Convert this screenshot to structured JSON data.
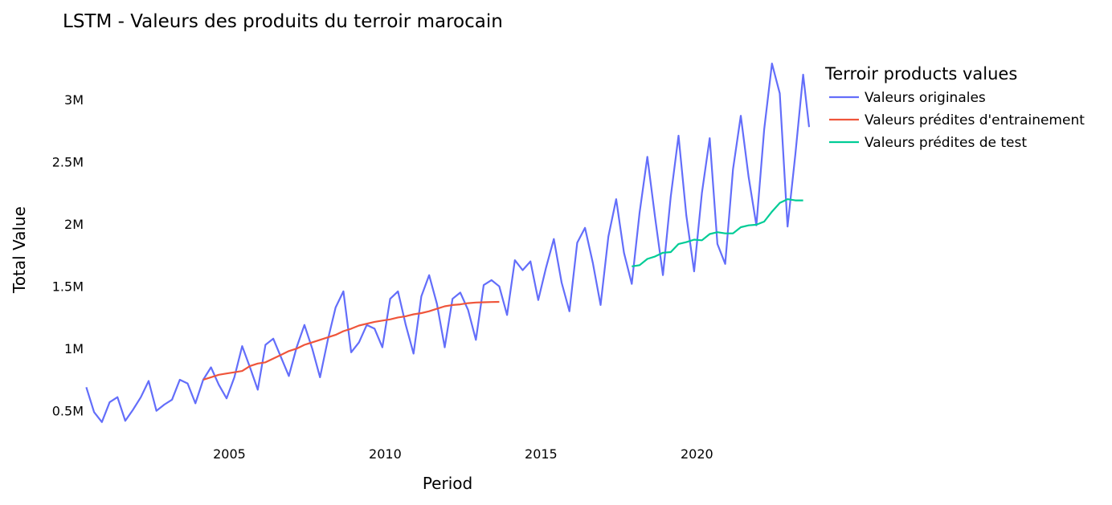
{
  "chart_data": {
    "type": "line",
    "title": "LSTM - Valeurs des produits du terroir marocain",
    "xlabel": "Period",
    "ylabel": "Total Value",
    "xlim": [
      2000.4,
      2023.6
    ],
    "ylim": [
      350000,
      3400000
    ],
    "x_ticks": [
      2005,
      2010,
      2015,
      2020
    ],
    "x_tick_labels": [
      "2005",
      "2010",
      "2015",
      "2020"
    ],
    "y_ticks": [
      500000,
      1000000,
      1500000,
      2000000,
      2500000,
      3000000
    ],
    "y_tick_labels": [
      "0.5M",
      "1M",
      "1.5M",
      "2M",
      "2.5M",
      "3M"
    ],
    "grid": false,
    "legend": {
      "title": "Terroir products values",
      "position": "top-right"
    },
    "series": [
      {
        "name": "Valeurs originales",
        "color": "#636efa",
        "x": [
          2000.41,
          2000.66,
          2000.91,
          2001.16,
          2001.41,
          2001.66,
          2001.91,
          2002.16,
          2002.41,
          2002.66,
          2002.91,
          2003.16,
          2003.41,
          2003.66,
          2003.91,
          2004.16,
          2004.41,
          2004.66,
          2004.91,
          2005.16,
          2005.41,
          2005.66,
          2005.91,
          2006.16,
          2006.41,
          2006.66,
          2006.91,
          2007.16,
          2007.41,
          2007.66,
          2007.91,
          2008.16,
          2008.41,
          2008.66,
          2008.91,
          2009.16,
          2009.41,
          2009.66,
          2009.91,
          2010.16,
          2010.41,
          2010.66,
          2010.91,
          2011.16,
          2011.41,
          2011.66,
          2011.91,
          2012.16,
          2012.41,
          2012.66,
          2012.91,
          2013.16,
          2013.41,
          2013.66,
          2013.91,
          2014.16,
          2014.41,
          2014.66,
          2014.91,
          2015.16,
          2015.41,
          2015.66,
          2015.91,
          2016.16,
          2016.41,
          2016.66,
          2016.91,
          2017.16,
          2017.41,
          2017.66,
          2017.91,
          2018.16,
          2018.41,
          2018.66,
          2018.91,
          2019.16,
          2019.41,
          2019.66,
          2019.91,
          2020.16,
          2020.41,
          2020.66,
          2020.91,
          2021.16,
          2021.41,
          2021.66,
          2021.91,
          2022.16,
          2022.41,
          2022.66,
          2022.91,
          2023.16,
          2023.41,
          2023.6
        ],
        "values": [
          690000,
          490000,
          410000,
          570000,
          610000,
          420000,
          510000,
          610000,
          740000,
          500000,
          550000,
          590000,
          750000,
          720000,
          560000,
          750000,
          850000,
          710000,
          600000,
          770000,
          1020000,
          850000,
          670000,
          1030000,
          1080000,
          930000,
          780000,
          1010000,
          1190000,
          1000000,
          770000,
          1070000,
          1330000,
          1460000,
          970000,
          1050000,
          1190000,
          1160000,
          1010000,
          1400000,
          1460000,
          1190000,
          960000,
          1420000,
          1590000,
          1360000,
          1010000,
          1400000,
          1450000,
          1310000,
          1070000,
          1510000,
          1550000,
          1500000,
          1270000,
          1710000,
          1630000,
          1700000,
          1390000,
          1650000,
          1880000,
          1530000,
          1300000,
          1850000,
          1970000,
          1690000,
          1350000,
          1900000,
          2200000,
          1770000,
          1520000,
          2090000,
          2540000,
          2050000,
          1590000,
          2220000,
          2710000,
          2070000,
          1620000,
          2250000,
          2690000,
          1840000,
          1680000,
          2440000,
          2870000,
          2380000,
          1990000,
          2760000,
          3290000,
          3050000,
          1980000,
          2560000,
          3200000,
          2780000
        ]
      },
      {
        "name": "Valeurs prédites d'entrainement",
        "color": "#ef553b",
        "x": [
          2004.16,
          2004.41,
          2004.66,
          2004.91,
          2005.16,
          2005.41,
          2005.66,
          2005.91,
          2006.16,
          2006.41,
          2006.66,
          2006.91,
          2007.16,
          2007.41,
          2007.66,
          2007.91,
          2008.16,
          2008.41,
          2008.66,
          2008.91,
          2009.16,
          2009.41,
          2009.66,
          2009.91,
          2010.16,
          2010.41,
          2010.66,
          2010.91,
          2011.16,
          2011.41,
          2011.66,
          2011.91,
          2012.16,
          2012.41,
          2012.66,
          2012.91,
          2013.16,
          2013.41,
          2013.66
        ],
        "values": [
          750000,
          770000,
          790000,
          800000,
          810000,
          820000,
          860000,
          880000,
          890000,
          920000,
          950000,
          980000,
          1000000,
          1030000,
          1050000,
          1070000,
          1090000,
          1110000,
          1140000,
          1160000,
          1185000,
          1200000,
          1215000,
          1225000,
          1235000,
          1250000,
          1260000,
          1275000,
          1285000,
          1300000,
          1320000,
          1340000,
          1350000,
          1355000,
          1365000,
          1370000,
          1372000,
          1374000,
          1375000
        ]
      },
      {
        "name": "Valeurs prédites de test",
        "color": "#00cc96",
        "x": [
          2017.91,
          2018.16,
          2018.41,
          2018.66,
          2018.91,
          2019.16,
          2019.41,
          2019.66,
          2019.91,
          2020.16,
          2020.41,
          2020.66,
          2020.91,
          2021.16,
          2021.41,
          2021.66,
          2021.91,
          2022.16,
          2022.41,
          2022.66,
          2022.91,
          2023.16,
          2023.41
        ],
        "values": [
          1660000,
          1670000,
          1720000,
          1740000,
          1770000,
          1775000,
          1840000,
          1855000,
          1875000,
          1870000,
          1920000,
          1935000,
          1925000,
          1925000,
          1975000,
          1990000,
          1995000,
          2020000,
          2100000,
          2170000,
          2200000,
          2190000,
          2190000
        ]
      }
    ]
  }
}
